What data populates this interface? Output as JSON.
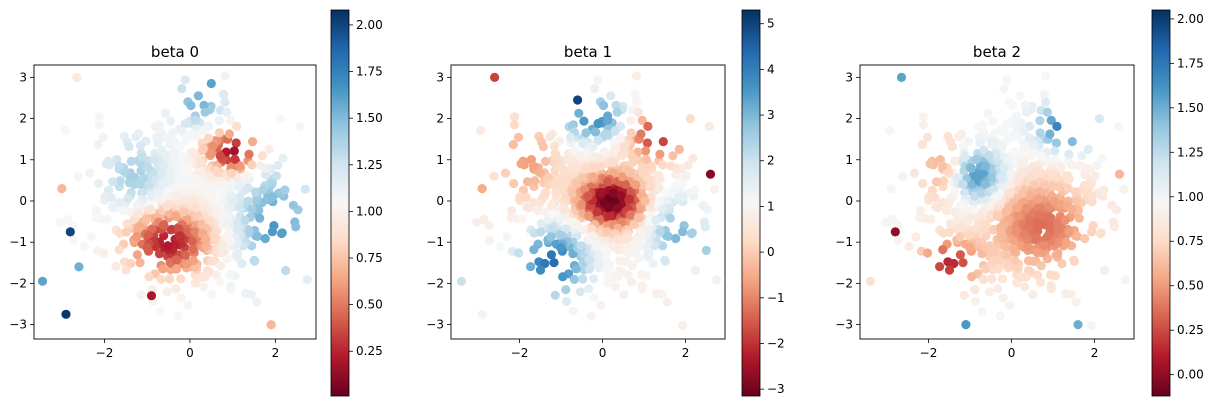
{
  "chart_data": [
    {
      "type": "scatter",
      "title": "beta 0",
      "xlabel": "",
      "ylabel": "",
      "xlim": [
        -3.65,
        2.95
      ],
      "ylim": [
        -3.35,
        3.3
      ],
      "xticks": [
        -2,
        0,
        2
      ],
      "yticks": [
        -3,
        -2,
        -1,
        0,
        1,
        2,
        3
      ],
      "colormap": "RdBu",
      "colorbar": {
        "min": 0.01,
        "max": 2.08,
        "ticks": [
          0.25,
          0.5,
          0.75,
          1.0,
          1.25,
          1.5,
          1.75,
          2.0
        ],
        "tick_labels": [
          "0.25",
          "0.50",
          "0.75",
          "1.00",
          "1.25",
          "1.50",
          "1.75",
          "2.00"
        ]
      },
      "pattern": [
        {
          "cx": 1.0,
          "cy": 1.2,
          "sx": 0.45,
          "sy": 0.35,
          "amp": -0.9
        },
        {
          "cx": -0.5,
          "cy": -1.0,
          "sx": 0.7,
          "sy": 0.55,
          "amp": -0.85
        },
        {
          "cx": 2.0,
          "cy": -0.6,
          "sx": 0.6,
          "sy": 0.9,
          "amp": 0.6
        },
        {
          "cx": -1.3,
          "cy": 0.6,
          "sx": 0.5,
          "sy": 0.6,
          "amp": 0.35
        },
        {
          "cx": 0.2,
          "cy": 2.4,
          "sx": 0.4,
          "sy": 0.4,
          "amp": 0.5
        }
      ],
      "base": 1.05,
      "outliers": [
        {
          "x": -2.9,
          "y": -2.75,
          "v": 2.05
        },
        {
          "x": -2.8,
          "y": -0.75,
          "v": 2.0
        },
        {
          "x": -3.45,
          "y": -1.95,
          "v": 1.6
        },
        {
          "x": -2.65,
          "y": 3.0,
          "v": 0.95
        },
        {
          "x": -2.6,
          "y": -1.6,
          "v": 1.55
        },
        {
          "x": -3.0,
          "y": 0.3,
          "v": 0.7
        },
        {
          "x": 0.5,
          "y": 2.85,
          "v": 1.6
        },
        {
          "x": -0.9,
          "y": -2.3,
          "v": 0.2
        },
        {
          "x": 1.9,
          "y": -3.0,
          "v": 0.7
        }
      ]
    },
    {
      "type": "scatter",
      "title": "beta 1",
      "xlabel": "",
      "ylabel": "",
      "xlim": [
        -3.65,
        2.95
      ],
      "ylim": [
        -3.35,
        3.3
      ],
      "xticks": [
        -2,
        0,
        2
      ],
      "yticks": [
        -3,
        -2,
        -1,
        0,
        1,
        2,
        3
      ],
      "colormap": "RdBu",
      "colorbar": {
        "min": -3.15,
        "max": 5.3,
        "ticks": [
          -3,
          -2,
          -1,
          0,
          1,
          2,
          3,
          4,
          5
        ],
        "tick_labels": [
          "−3",
          "−2",
          "−1",
          "0",
          "1",
          "2",
          "3",
          "4",
          "5"
        ]
      },
      "pattern": [
        {
          "cx": 0.2,
          "cy": 0.0,
          "sx": 0.55,
          "sy": 0.45,
          "amp": -4.0
        },
        {
          "cx": -1.2,
          "cy": -1.5,
          "sx": 0.6,
          "sy": 0.6,
          "amp": 3.5
        },
        {
          "cx": -0.2,
          "cy": 2.0,
          "sx": 0.6,
          "sy": 0.4,
          "amp": 3.0
        },
        {
          "cx": 1.8,
          "cy": -0.8,
          "sx": 0.5,
          "sy": 0.6,
          "amp": 2.2
        },
        {
          "cx": 1.3,
          "cy": 1.6,
          "sx": 0.5,
          "sy": 0.4,
          "amp": -3.0
        },
        {
          "cx": -1.8,
          "cy": 1.0,
          "sx": 0.5,
          "sy": 0.7,
          "amp": -1.5
        }
      ],
      "base": 0.8,
      "outliers": [
        {
          "x": -2.6,
          "y": 3.0,
          "v": -1.8
        },
        {
          "x": -2.9,
          "y": 0.3,
          "v": -0.5
        },
        {
          "x": -3.4,
          "y": -1.95,
          "v": 2.0
        },
        {
          "x": -2.9,
          "y": -2.75,
          "v": 1.2
        },
        {
          "x": 2.6,
          "y": 0.65,
          "v": -2.8
        },
        {
          "x": -0.6,
          "y": 2.45,
          "v": 5.0
        },
        {
          "x": 2.5,
          "y": -1.2,
          "v": 2.5
        }
      ]
    },
    {
      "type": "scatter",
      "title": "beta 2",
      "xlabel": "",
      "ylabel": "",
      "xlim": [
        -3.65,
        2.95
      ],
      "ylim": [
        -3.35,
        3.3
      ],
      "xticks": [
        -2,
        0,
        2
      ],
      "yticks": [
        -3,
        -2,
        -1,
        0,
        1,
        2,
        3
      ],
      "colormap": "RdBu",
      "colorbar": {
        "min": -0.12,
        "max": 2.05,
        "ticks": [
          0.0,
          0.25,
          0.5,
          0.75,
          1.0,
          1.25,
          1.5,
          1.75,
          2.0
        ],
        "tick_labels": [
          "0.00",
          "0.25",
          "0.50",
          "0.75",
          "1.00",
          "1.25",
          "1.50",
          "1.75",
          "2.00"
        ]
      },
      "pattern": [
        {
          "cx": -0.8,
          "cy": 0.6,
          "sx": 0.45,
          "sy": 0.45,
          "amp": 0.7
        },
        {
          "cx": 0.7,
          "cy": -0.6,
          "sx": 0.9,
          "sy": 0.8,
          "amp": -0.6
        },
        {
          "cx": -1.5,
          "cy": -1.5,
          "sx": 0.5,
          "sy": 0.4,
          "amp": -0.8
        },
        {
          "cx": 1.3,
          "cy": 1.8,
          "sx": 0.5,
          "sy": 0.4,
          "amp": 0.8
        },
        {
          "cx": -1.7,
          "cy": 0.8,
          "sx": 0.4,
          "sy": 0.6,
          "amp": -0.4
        }
      ],
      "base": 0.95,
      "outliers": [
        {
          "x": -2.65,
          "y": 3.0,
          "v": 1.55
        },
        {
          "x": -2.8,
          "y": -0.75,
          "v": 0.0
        },
        {
          "x": -1.1,
          "y": -3.0,
          "v": 1.6
        },
        {
          "x": 1.6,
          "y": -3.0,
          "v": 1.5
        },
        {
          "x": -3.4,
          "y": -1.95,
          "v": 0.8
        },
        {
          "x": -2.9,
          "y": 0.3,
          "v": 0.95
        },
        {
          "x": 2.6,
          "y": 0.65,
          "v": 0.6
        }
      ]
    }
  ]
}
